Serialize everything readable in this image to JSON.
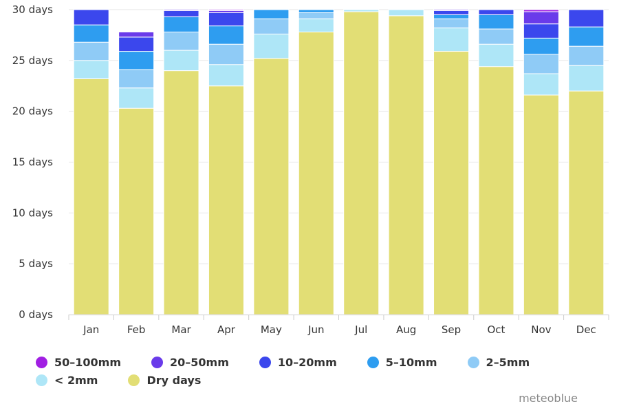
{
  "chart_data": {
    "type": "bar",
    "stacked": true,
    "categories": [
      "Jan",
      "Feb",
      "Mar",
      "Apr",
      "May",
      "Jun",
      "Jul",
      "Aug",
      "Sep",
      "Oct",
      "Nov",
      "Dec"
    ],
    "y_tick_labels": [
      "0 days",
      "5 days",
      "10 days",
      "15 days",
      "20 days",
      "25 days",
      "30 days"
    ],
    "ylim": [
      0,
      30
    ],
    "grid": true,
    "legend_position": "bottom",
    "series": [
      {
        "name": "Dry days",
        "color": "#e2de75",
        "values": [
          23.2,
          20.3,
          24.0,
          22.5,
          25.2,
          27.8,
          29.8,
          29.4,
          25.9,
          24.4,
          21.6,
          22.0
        ]
      },
      {
        "name": "< 2mm",
        "color": "#aee6f7",
        "values": [
          1.8,
          2.0,
          2.0,
          2.1,
          2.4,
          1.3,
          0.2,
          0.6,
          2.3,
          2.2,
          2.1,
          2.5
        ]
      },
      {
        "name": "2-5mm",
        "color": "#8fcbf6",
        "values": [
          1.8,
          1.8,
          1.8,
          2.0,
          1.5,
          0.6,
          0.0,
          0.0,
          0.9,
          1.5,
          1.9,
          1.9
        ]
      },
      {
        "name": "5-10mm",
        "color": "#2e9df0",
        "values": [
          1.7,
          1.8,
          1.5,
          1.8,
          0.9,
          0.3,
          0.0,
          0.0,
          0.4,
          1.4,
          1.6,
          1.9
        ]
      },
      {
        "name": "10-20mm",
        "color": "#3b47ed",
        "values": [
          1.5,
          1.4,
          0.6,
          1.3,
          0.0,
          0.1,
          0.0,
          0.0,
          0.4,
          0.5,
          1.4,
          1.7
        ]
      },
      {
        "name": "20-50mm",
        "color": "#6a3bea",
        "values": [
          0.0,
          0.5,
          0.1,
          0.2,
          0.0,
          0.0,
          0.0,
          0.0,
          0.1,
          0.0,
          1.2,
          0.0
        ]
      },
      {
        "name": "50-100mm",
        "color": "#a11fe3",
        "values": [
          0.0,
          0.0,
          0.0,
          0.1,
          0.0,
          0.0,
          0.0,
          0.0,
          0.0,
          0.0,
          0.2,
          0.0
        ]
      }
    ],
    "legend_order": [
      "50-100mm",
      "20-50mm",
      "10-20mm",
      "5-10mm",
      "2-5mm",
      "< 2mm",
      "Dry days"
    ]
  },
  "legend": {
    "items": [
      {
        "label": "50–100mm",
        "color": "#a11fe3"
      },
      {
        "label": "20–50mm",
        "color": "#6a3bea"
      },
      {
        "label": "10–20mm",
        "color": "#3b47ed"
      },
      {
        "label": "5–10mm",
        "color": "#2e9df0"
      },
      {
        "label": "2–5mm",
        "color": "#8fcbf6"
      },
      {
        "label": "< 2mm",
        "color": "#aee6f7"
      },
      {
        "label": "Dry days",
        "color": "#e2de75"
      }
    ]
  },
  "credit": "meteoblue"
}
